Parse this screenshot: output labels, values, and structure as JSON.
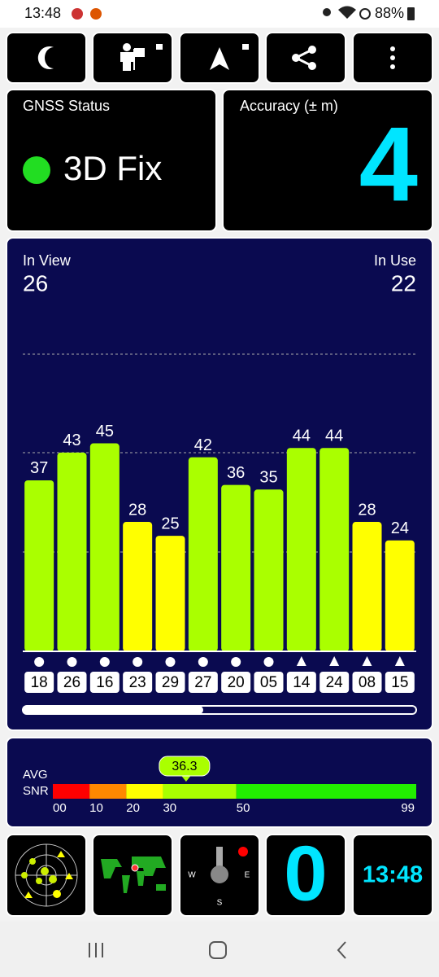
{
  "status_bar": {
    "time": "13:48",
    "battery": "88%"
  },
  "gnss_status": {
    "title": "GNSS Status",
    "value": "3D Fix"
  },
  "accuracy": {
    "title": "Accuracy (± m)",
    "value": 4
  },
  "satellites": {
    "in_view_label": "In View",
    "in_view": 26,
    "in_use_label": "In Use",
    "in_use": 22
  },
  "chart_data": {
    "type": "bar",
    "categories": [
      "18",
      "26",
      "16",
      "23",
      "29",
      "27",
      "20",
      "05",
      "14",
      "24",
      "08",
      "15"
    ],
    "values": [
      37,
      43,
      45,
      28,
      25,
      42,
      36,
      35,
      44,
      44,
      28,
      24
    ],
    "markers": [
      "circle",
      "circle",
      "circle",
      "circle",
      "circle",
      "circle",
      "circle",
      "circle",
      "triangle",
      "triangle",
      "triangle",
      "triangle"
    ],
    "ylim": [
      0,
      65
    ]
  },
  "snr": {
    "label_top": "AVG",
    "label_bottom": "SNR",
    "avg": 36.3,
    "ticks": [
      {
        "value": 0,
        "label": "00"
      },
      10,
      20,
      30,
      50,
      99
    ],
    "colors": [
      "#ff0000",
      "#ff8800",
      "#ffff00",
      "#aaff00",
      "#22ee00"
    ]
  },
  "compass": {
    "west": "W",
    "east": "E",
    "south": "S"
  },
  "tiles": {
    "speed": "0",
    "clock": "13:48"
  }
}
